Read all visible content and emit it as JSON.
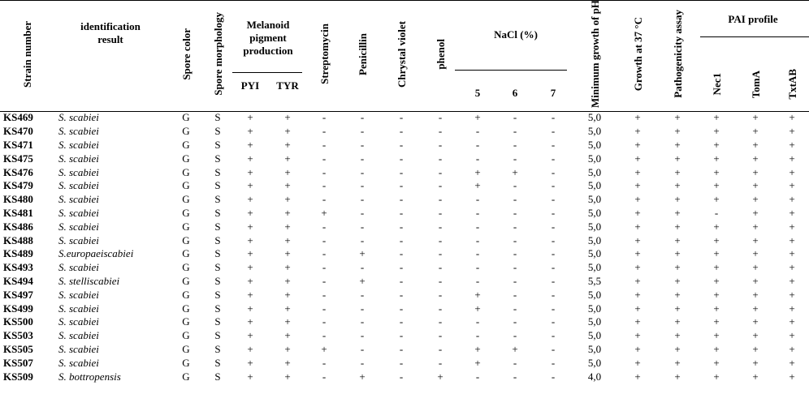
{
  "headers": {
    "strain_number": "Strain number",
    "identification_result": "identification result",
    "spore_color": "Spore color",
    "spore_morphology": "Spore morphology",
    "melanoid": "Melanoid pigment production",
    "pyi": "PYI",
    "tyr": "TYR",
    "streptomycin": "Streptomycin",
    "penicillin": "Penicillin",
    "crystal_violet": "Chrystal violet",
    "phenol": "phenol",
    "nacl": "NaCl (%)",
    "nacl_5": "5",
    "nacl_6": "6",
    "nacl_7": "7",
    "min_ph": "Minimum growth of pH",
    "growth37": "Growth at 37 °C",
    "pathogenicity": "Pathogenicity assay",
    "pai": "PAI profile",
    "nec1": "Nec1",
    "toma": "TomA",
    "txtab": "TxtAB"
  },
  "rows": [
    [
      "KS469",
      "S. scabiei",
      "G",
      "S",
      "+",
      "+",
      "-",
      "-",
      "-",
      "-",
      "+",
      "-",
      "-",
      "5,0",
      "+",
      "+",
      "+",
      "+",
      "+"
    ],
    [
      "KS470",
      "S. scabiei",
      "G",
      "S",
      "+",
      "+",
      "-",
      "-",
      "-",
      "-",
      "-",
      "-",
      "-",
      "5,0",
      "+",
      "+",
      "+",
      "+",
      "+"
    ],
    [
      "KS471",
      "S. scabiei",
      "G",
      "S",
      "+",
      "+",
      "-",
      "-",
      "-",
      "-",
      "-",
      "-",
      "-",
      "5,0",
      "+",
      "+",
      "+",
      "+",
      "+"
    ],
    [
      "KS475",
      "S. scabiei",
      "G",
      "S",
      "+",
      "+",
      "-",
      "-",
      "-",
      "-",
      "-",
      "-",
      "-",
      "5,0",
      "+",
      "+",
      "+",
      "+",
      "+"
    ],
    [
      "KS476",
      "S. scabiei",
      "G",
      "S",
      "+",
      "+",
      "-",
      "-",
      "-",
      "-",
      "+",
      "+",
      "-",
      "5,0",
      "+",
      "+",
      "+",
      "+",
      "+"
    ],
    [
      "KS479",
      "S. scabiei",
      "G",
      "S",
      "+",
      "+",
      "-",
      "-",
      "-",
      "-",
      "+",
      "-",
      "-",
      "5,0",
      "+",
      "+",
      "+",
      "+",
      "+"
    ],
    [
      "KS480",
      "S. scabiei",
      "G",
      "S",
      "+",
      "+",
      "-",
      "-",
      "-",
      "-",
      "-",
      "-",
      "-",
      "5,0",
      "+",
      "+",
      "+",
      "+",
      "+"
    ],
    [
      "KS481",
      "S. scabiei",
      "G",
      "S",
      "+",
      "+",
      "+",
      "-",
      "-",
      "-",
      "-",
      "-",
      "-",
      "5,0",
      "+",
      "+",
      "-",
      "+",
      "+"
    ],
    [
      "KS486",
      "S. scabiei",
      "G",
      "S",
      "+",
      "+",
      "-",
      "-",
      "-",
      "-",
      "-",
      "-",
      "-",
      "5,0",
      "+",
      "+",
      "+",
      "+",
      "+"
    ],
    [
      "KS488",
      "S. scabiei",
      "G",
      "S",
      "+",
      "+",
      "-",
      "-",
      "-",
      "-",
      "-",
      "-",
      "-",
      "5,0",
      "+",
      "+",
      "+",
      "+",
      "+"
    ],
    [
      "KS489",
      "S.europaeiscabiei",
      "G",
      "S",
      "+",
      "+",
      "-",
      "+",
      "-",
      "-",
      "-",
      "-",
      "-",
      "5,0",
      "+",
      "+",
      "+",
      "+",
      "+"
    ],
    [
      "KS493",
      "S. scabiei",
      "G",
      "S",
      "+",
      "+",
      "-",
      "-",
      "-",
      "-",
      "-",
      "-",
      "-",
      "5,0",
      "+",
      "+",
      "+",
      "+",
      "+"
    ],
    [
      "KS494",
      "S. stelliscabiei",
      "G",
      "S",
      "+",
      "+",
      "-",
      "+",
      "-",
      "-",
      "-",
      "-",
      "-",
      "5,5",
      "+",
      "+",
      "+",
      "+",
      "+"
    ],
    [
      "KS497",
      "S. scabiei",
      "G",
      "S",
      "+",
      "+",
      "-",
      "-",
      "-",
      "-",
      "+",
      "-",
      "-",
      "5,0",
      "+",
      "+",
      "+",
      "+",
      "+"
    ],
    [
      "KS499",
      "S. scabiei",
      "G",
      "S",
      "+",
      "+",
      "-",
      "-",
      "-",
      "-",
      "+",
      "-",
      "-",
      "5,0",
      "+",
      "+",
      "+",
      "+",
      "+"
    ],
    [
      "KS500",
      "S. scabiei",
      "G",
      "S",
      "+",
      "+",
      "-",
      "-",
      "-",
      "-",
      "-",
      "-",
      "-",
      "5,0",
      "+",
      "+",
      "+",
      "+",
      "+"
    ],
    [
      "KS503",
      "S. scabiei",
      "G",
      "S",
      "+",
      "+",
      "-",
      "-",
      "-",
      "-",
      "-",
      "-",
      "-",
      "5,0",
      "+",
      "+",
      "+",
      "+",
      "+"
    ],
    [
      "KS505",
      "S. scabiei",
      "G",
      "S",
      "+",
      "+",
      "+",
      "-",
      "-",
      "-",
      "+",
      "+",
      "-",
      "5,0",
      "+",
      "+",
      "+",
      "+",
      "+"
    ],
    [
      "KS507",
      "S. scabiei",
      "G",
      "S",
      "+",
      "+",
      "-",
      "-",
      "-",
      "-",
      "+",
      "-",
      "-",
      "5,0",
      "+",
      "+",
      "+",
      "+",
      "+"
    ],
    [
      "KS509",
      "S. bottropensis",
      "G",
      "S",
      "+",
      "+",
      "-",
      "+",
      "-",
      "+",
      "-",
      "-",
      "-",
      "4,0",
      "+",
      "+",
      "+",
      "+",
      "+"
    ]
  ]
}
